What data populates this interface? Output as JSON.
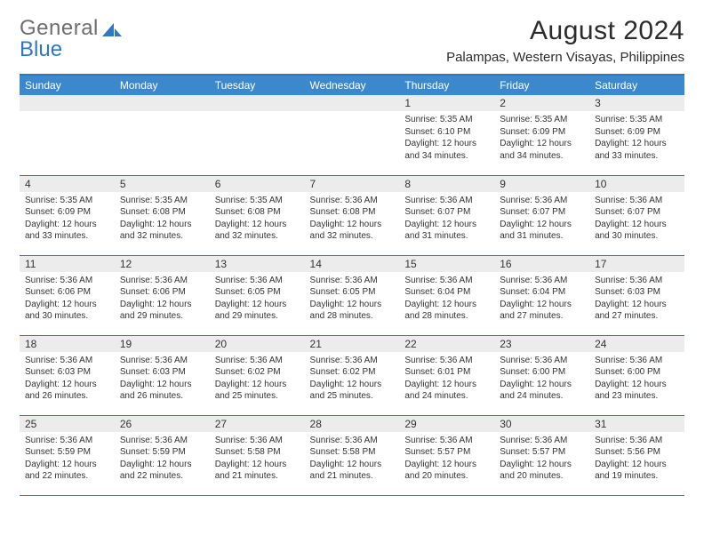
{
  "logo": {
    "part1": "General",
    "part2": "Blue"
  },
  "title": "August 2024",
  "location": "Palampas, Western Visayas, Philippines",
  "colors": {
    "header_bg": "#3b89cc",
    "accent": "#2f78bf",
    "daynum_bg": "#ececec",
    "text": "#333333",
    "logo_gray": "#6e6e6e"
  },
  "day_headers": [
    "Sunday",
    "Monday",
    "Tuesday",
    "Wednesday",
    "Thursday",
    "Friday",
    "Saturday"
  ],
  "weeks": [
    [
      {
        "day": "",
        "lines": []
      },
      {
        "day": "",
        "lines": []
      },
      {
        "day": "",
        "lines": []
      },
      {
        "day": "",
        "lines": []
      },
      {
        "day": "1",
        "lines": [
          "Sunrise: 5:35 AM",
          "Sunset: 6:10 PM",
          "Daylight: 12 hours and 34 minutes."
        ]
      },
      {
        "day": "2",
        "lines": [
          "Sunrise: 5:35 AM",
          "Sunset: 6:09 PM",
          "Daylight: 12 hours and 34 minutes."
        ]
      },
      {
        "day": "3",
        "lines": [
          "Sunrise: 5:35 AM",
          "Sunset: 6:09 PM",
          "Daylight: 12 hours and 33 minutes."
        ]
      }
    ],
    [
      {
        "day": "4",
        "lines": [
          "Sunrise: 5:35 AM",
          "Sunset: 6:09 PM",
          "Daylight: 12 hours and 33 minutes."
        ]
      },
      {
        "day": "5",
        "lines": [
          "Sunrise: 5:35 AM",
          "Sunset: 6:08 PM",
          "Daylight: 12 hours and 32 minutes."
        ]
      },
      {
        "day": "6",
        "lines": [
          "Sunrise: 5:35 AM",
          "Sunset: 6:08 PM",
          "Daylight: 12 hours and 32 minutes."
        ]
      },
      {
        "day": "7",
        "lines": [
          "Sunrise: 5:36 AM",
          "Sunset: 6:08 PM",
          "Daylight: 12 hours and 32 minutes."
        ]
      },
      {
        "day": "8",
        "lines": [
          "Sunrise: 5:36 AM",
          "Sunset: 6:07 PM",
          "Daylight: 12 hours and 31 minutes."
        ]
      },
      {
        "day": "9",
        "lines": [
          "Sunrise: 5:36 AM",
          "Sunset: 6:07 PM",
          "Daylight: 12 hours and 31 minutes."
        ]
      },
      {
        "day": "10",
        "lines": [
          "Sunrise: 5:36 AM",
          "Sunset: 6:07 PM",
          "Daylight: 12 hours and 30 minutes."
        ]
      }
    ],
    [
      {
        "day": "11",
        "lines": [
          "Sunrise: 5:36 AM",
          "Sunset: 6:06 PM",
          "Daylight: 12 hours and 30 minutes."
        ]
      },
      {
        "day": "12",
        "lines": [
          "Sunrise: 5:36 AM",
          "Sunset: 6:06 PM",
          "Daylight: 12 hours and 29 minutes."
        ]
      },
      {
        "day": "13",
        "lines": [
          "Sunrise: 5:36 AM",
          "Sunset: 6:05 PM",
          "Daylight: 12 hours and 29 minutes."
        ]
      },
      {
        "day": "14",
        "lines": [
          "Sunrise: 5:36 AM",
          "Sunset: 6:05 PM",
          "Daylight: 12 hours and 28 minutes."
        ]
      },
      {
        "day": "15",
        "lines": [
          "Sunrise: 5:36 AM",
          "Sunset: 6:04 PM",
          "Daylight: 12 hours and 28 minutes."
        ]
      },
      {
        "day": "16",
        "lines": [
          "Sunrise: 5:36 AM",
          "Sunset: 6:04 PM",
          "Daylight: 12 hours and 27 minutes."
        ]
      },
      {
        "day": "17",
        "lines": [
          "Sunrise: 5:36 AM",
          "Sunset: 6:03 PM",
          "Daylight: 12 hours and 27 minutes."
        ]
      }
    ],
    [
      {
        "day": "18",
        "lines": [
          "Sunrise: 5:36 AM",
          "Sunset: 6:03 PM",
          "Daylight: 12 hours and 26 minutes."
        ]
      },
      {
        "day": "19",
        "lines": [
          "Sunrise: 5:36 AM",
          "Sunset: 6:03 PM",
          "Daylight: 12 hours and 26 minutes."
        ]
      },
      {
        "day": "20",
        "lines": [
          "Sunrise: 5:36 AM",
          "Sunset: 6:02 PM",
          "Daylight: 12 hours and 25 minutes."
        ]
      },
      {
        "day": "21",
        "lines": [
          "Sunrise: 5:36 AM",
          "Sunset: 6:02 PM",
          "Daylight: 12 hours and 25 minutes."
        ]
      },
      {
        "day": "22",
        "lines": [
          "Sunrise: 5:36 AM",
          "Sunset: 6:01 PM",
          "Daylight: 12 hours and 24 minutes."
        ]
      },
      {
        "day": "23",
        "lines": [
          "Sunrise: 5:36 AM",
          "Sunset: 6:00 PM",
          "Daylight: 12 hours and 24 minutes."
        ]
      },
      {
        "day": "24",
        "lines": [
          "Sunrise: 5:36 AM",
          "Sunset: 6:00 PM",
          "Daylight: 12 hours and 23 minutes."
        ]
      }
    ],
    [
      {
        "day": "25",
        "lines": [
          "Sunrise: 5:36 AM",
          "Sunset: 5:59 PM",
          "Daylight: 12 hours and 22 minutes."
        ]
      },
      {
        "day": "26",
        "lines": [
          "Sunrise: 5:36 AM",
          "Sunset: 5:59 PM",
          "Daylight: 12 hours and 22 minutes."
        ]
      },
      {
        "day": "27",
        "lines": [
          "Sunrise: 5:36 AM",
          "Sunset: 5:58 PM",
          "Daylight: 12 hours and 21 minutes."
        ]
      },
      {
        "day": "28",
        "lines": [
          "Sunrise: 5:36 AM",
          "Sunset: 5:58 PM",
          "Daylight: 12 hours and 21 minutes."
        ]
      },
      {
        "day": "29",
        "lines": [
          "Sunrise: 5:36 AM",
          "Sunset: 5:57 PM",
          "Daylight: 12 hours and 20 minutes."
        ]
      },
      {
        "day": "30",
        "lines": [
          "Sunrise: 5:36 AM",
          "Sunset: 5:57 PM",
          "Daylight: 12 hours and 20 minutes."
        ]
      },
      {
        "day": "31",
        "lines": [
          "Sunrise: 5:36 AM",
          "Sunset: 5:56 PM",
          "Daylight: 12 hours and 19 minutes."
        ]
      }
    ]
  ]
}
